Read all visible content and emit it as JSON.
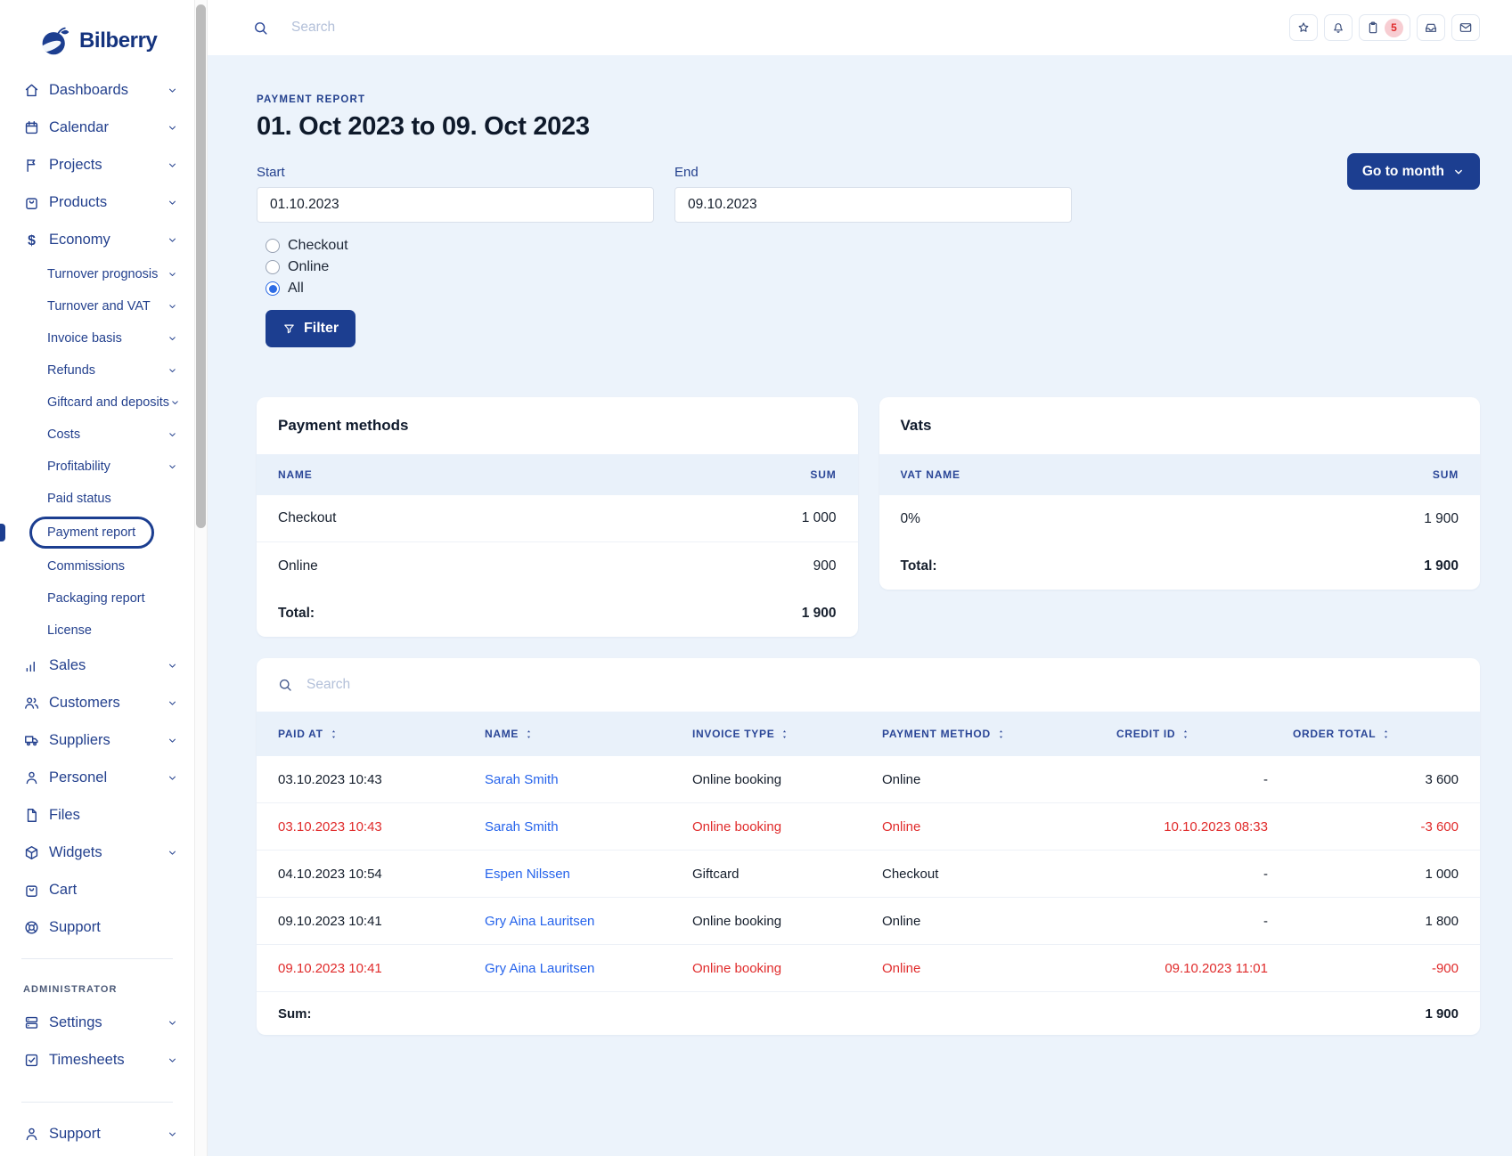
{
  "colors": {
    "accent_navy": "#1c3e90",
    "link_blue": "#2563eb",
    "danger_red": "#e02b2b",
    "badge_pink": "#f7cdd2",
    "body_bg": "#ecf3fb",
    "table_head_bg": "#e9f1fa"
  },
  "sidebar": {
    "logo_text": "Bilberry",
    "sections": [
      {
        "items": [
          {
            "label": "Dashboards",
            "icon": "home-icon",
            "chevron": true
          },
          {
            "label": "Calendar",
            "icon": "calendar-icon",
            "chevron": true
          },
          {
            "label": "Projects",
            "icon": "flag-icon",
            "chevron": true
          },
          {
            "label": "Products",
            "icon": "bag-icon",
            "chevron": true
          },
          {
            "label": "Economy",
            "icon": "dollar-icon",
            "chevron": true,
            "children": [
              {
                "label": "Turnover prognosis",
                "chevron": true
              },
              {
                "label": "Turnover and VAT",
                "chevron": true
              },
              {
                "label": "Invoice basis",
                "chevron": true
              },
              {
                "label": "Refunds",
                "chevron": true
              },
              {
                "label": "Giftcard and deposits",
                "chevron": true
              },
              {
                "label": "Costs",
                "chevron": true
              },
              {
                "label": "Profitability",
                "chevron": true
              },
              {
                "label": "Paid status"
              },
              {
                "label": "Payment report",
                "active": true
              },
              {
                "label": "Commissions"
              },
              {
                "label": "Packaging report"
              },
              {
                "label": "License"
              }
            ]
          },
          {
            "label": "Sales",
            "icon": "chart-icon",
            "chevron": true
          },
          {
            "label": "Customers",
            "icon": "people-icon",
            "chevron": true
          },
          {
            "label": "Suppliers",
            "icon": "truck-icon",
            "chevron": true
          },
          {
            "label": "Personel",
            "icon": "person-icon",
            "chevron": true
          },
          {
            "label": "Files",
            "icon": "file-icon"
          },
          {
            "label": "Widgets",
            "icon": "cube-icon",
            "chevron": true
          },
          {
            "label": "Cart",
            "icon": "cart-icon"
          },
          {
            "label": "Support",
            "icon": "lifebuoy-icon"
          }
        ]
      },
      {
        "heading": "ADMINISTRATOR",
        "items": [
          {
            "label": "Settings",
            "icon": "server-icon",
            "chevron": true
          },
          {
            "label": "Timesheets",
            "icon": "checkbox-icon",
            "chevron": true
          }
        ]
      },
      {
        "items": [
          {
            "label": "Support",
            "icon": "person-icon",
            "chevron": true
          }
        ]
      }
    ]
  },
  "topbar": {
    "search_placeholder": "Search",
    "actions": [
      {
        "icon": "star-icon"
      },
      {
        "icon": "bell-icon"
      },
      {
        "icon": "clipboard-icon",
        "badge": "5"
      },
      {
        "icon": "inbox-icon"
      },
      {
        "icon": "mail-icon"
      }
    ]
  },
  "page": {
    "eyebrow": "PAYMENT REPORT",
    "title": "01. Oct 2023 to 09. Oct 2023",
    "goto_month_label": "Go to month"
  },
  "filters": {
    "start": {
      "label": "Start",
      "value": "01.10.2023"
    },
    "end": {
      "label": "End",
      "value": "09.10.2023"
    },
    "radios": [
      {
        "label": "Checkout",
        "checked": false
      },
      {
        "label": "Online",
        "checked": false
      },
      {
        "label": "All",
        "checked": true
      }
    ],
    "filter_label": "Filter"
  },
  "payment_methods": {
    "title": "Payment methods",
    "columns": [
      "NAME",
      "SUM"
    ],
    "rows": [
      {
        "name": "Checkout",
        "sum": "1 000"
      },
      {
        "name": "Online",
        "sum": "900"
      }
    ],
    "total_label": "Total:",
    "total_value": "1 900"
  },
  "vats": {
    "title": "Vats",
    "columns": [
      "VAT NAME",
      "SUM"
    ],
    "rows": [
      {
        "name": "0%",
        "sum": "1 900"
      }
    ],
    "total_label": "Total:",
    "total_value": "1 900"
  },
  "transactions": {
    "search_placeholder": "Search",
    "columns": [
      "PAID AT",
      "NAME",
      "INVOICE TYPE",
      "PAYMENT METHOD",
      "CREDIT ID",
      "ORDER TOTAL"
    ],
    "rows": [
      {
        "paid_at": "03.10.2023 10:43",
        "name": "Sarah Smith",
        "invoice_type": "Online booking",
        "payment_method": "Online",
        "credit_id": "-",
        "order_total": "3 600",
        "negative": false
      },
      {
        "paid_at": "03.10.2023 10:43",
        "name": "Sarah Smith",
        "invoice_type": "Online booking",
        "payment_method": "Online",
        "credit_id": "10.10.2023 08:33",
        "order_total": "-3 600",
        "negative": true
      },
      {
        "paid_at": "04.10.2023 10:54",
        "name": "Espen Nilssen",
        "invoice_type": "Giftcard",
        "payment_method": "Checkout",
        "credit_id": "-",
        "order_total": "1 000",
        "negative": false
      },
      {
        "paid_at": "09.10.2023 10:41",
        "name": "Gry Aina Lauritsen",
        "invoice_type": "Online booking",
        "payment_method": "Online",
        "credit_id": "-",
        "order_total": "1 800",
        "negative": false
      },
      {
        "paid_at": "09.10.2023 10:41",
        "name": "Gry Aina Lauritsen",
        "invoice_type": "Online booking",
        "payment_method": "Online",
        "credit_id": "09.10.2023 11:01",
        "order_total": "-900",
        "negative": true
      }
    ],
    "sum_label": "Sum:",
    "sum_value": "1 900"
  }
}
